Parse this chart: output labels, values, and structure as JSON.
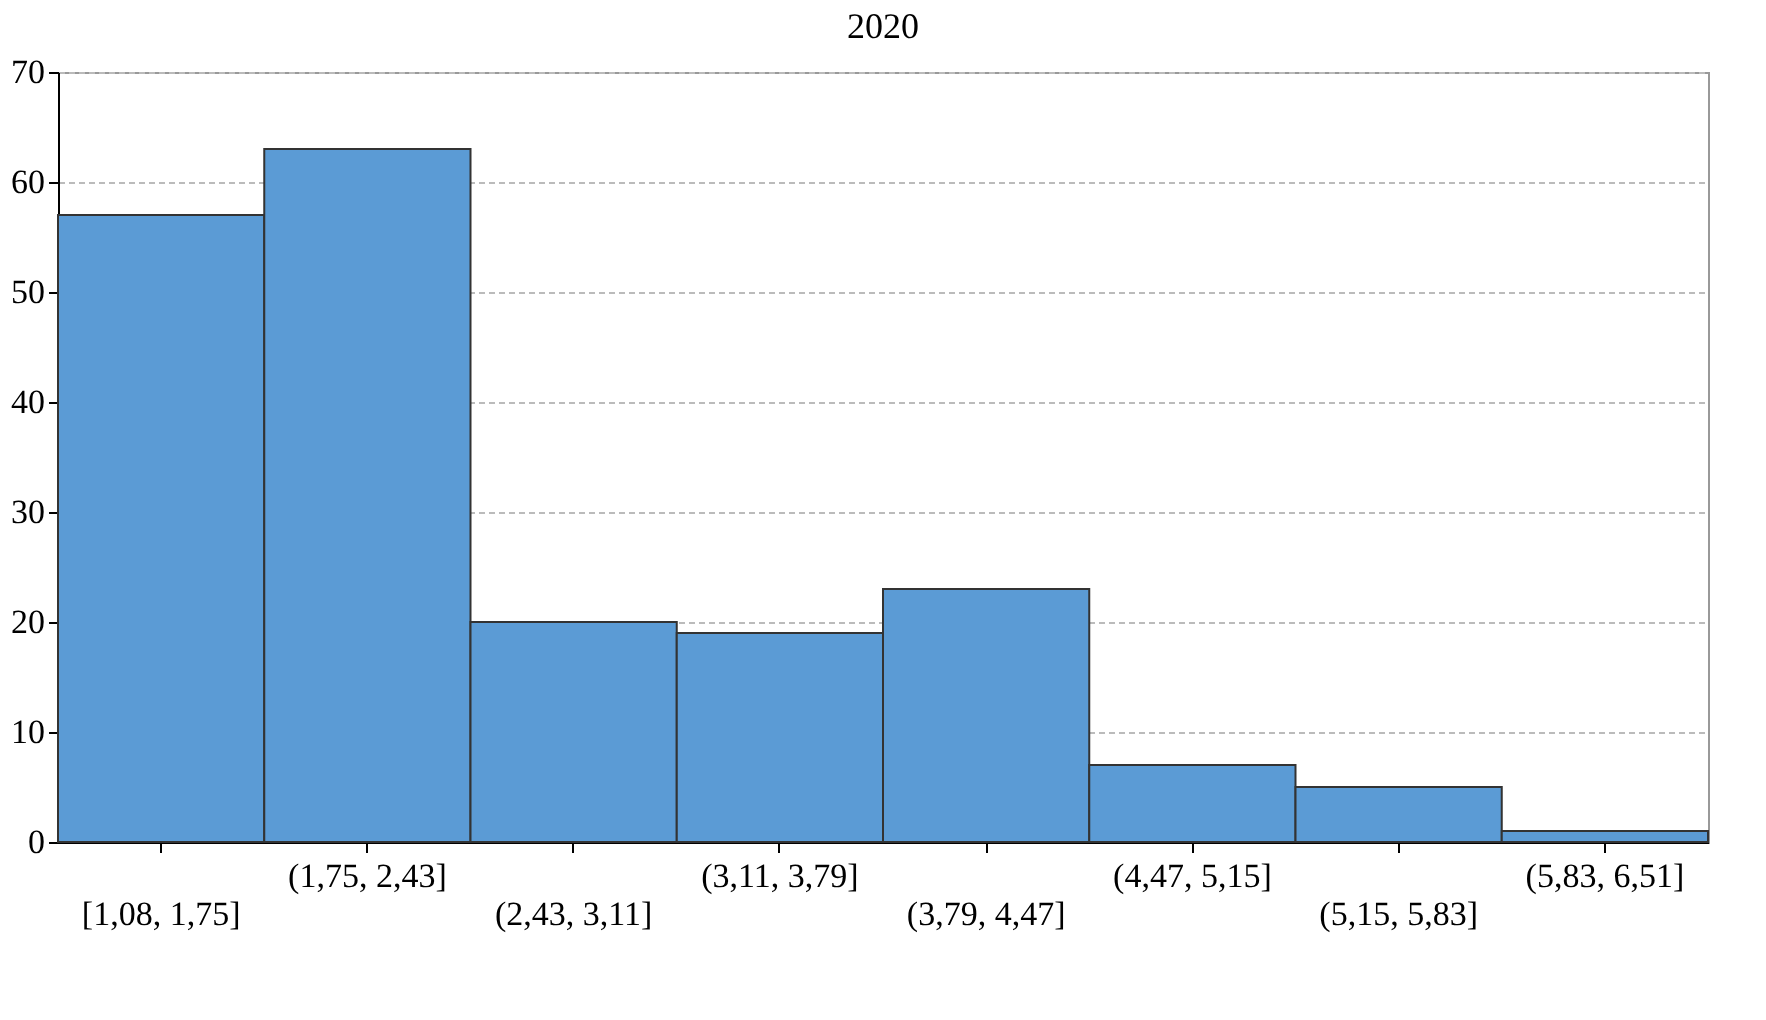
{
  "chart_data": {
    "type": "bar",
    "title": "2020",
    "categories": [
      "[1,08, 1,75]",
      "(1,75, 2,43]",
      "(2,43, 3,11]",
      "(3,11, 3,79]",
      "(3,79, 4,47]",
      "(4,47, 5,15]",
      "(5,15, 5,83]",
      "(5,83, 6,51]"
    ],
    "values": [
      57,
      63,
      20,
      19,
      23,
      7,
      5,
      1
    ],
    "color": "#5b9bd5",
    "ylim": [
      0,
      70
    ],
    "yticks": [
      0,
      10,
      20,
      30,
      40,
      50,
      60,
      70
    ],
    "grid": "y",
    "line_style": "dashed"
  }
}
